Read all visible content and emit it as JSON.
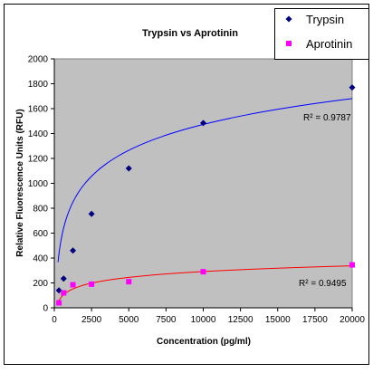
{
  "chart_data": {
    "type": "scatter",
    "title": "Trypsin vs Aprotinin",
    "xlabel": "Concentration (pg/ml)",
    "ylabel": "Relative Fluorescence Units (RFU)",
    "xlim": [
      0,
      20000
    ],
    "ylim": [
      0,
      2000
    ],
    "xticks": [
      0,
      2500,
      5000,
      7500,
      10000,
      12500,
      15000,
      17500,
      20000
    ],
    "yticks": [
      0,
      200,
      400,
      600,
      800,
      1000,
      1200,
      1400,
      1600,
      1800,
      2000
    ],
    "grid": false,
    "legend_position": "top-right",
    "plot_background": "#c0c0c0",
    "series": [
      {
        "name": "Trypsin",
        "color": "#000080",
        "marker": "diamond",
        "trendline_color": "#0000ff",
        "r_squared_label": "R² = 0.9787",
        "points": [
          {
            "x": 312,
            "y": 140
          },
          {
            "x": 625,
            "y": 235
          },
          {
            "x": 1250,
            "y": 460
          },
          {
            "x": 2500,
            "y": 755
          },
          {
            "x": 5000,
            "y": 1120
          },
          {
            "x": 10000,
            "y": 1485
          },
          {
            "x": 20000,
            "y": 1770
          }
        ],
        "trendline_log_fit": {
          "a": 300.0,
          "b": -1290.0
        }
      },
      {
        "name": "Aprotinin",
        "color": "#ff00ff",
        "marker": "square",
        "trendline_color": "#ff0000",
        "r_squared_label": "R² = 0.9495",
        "points": [
          {
            "x": 312,
            "y": 40
          },
          {
            "x": 625,
            "y": 120
          },
          {
            "x": 1250,
            "y": 185
          },
          {
            "x": 2500,
            "y": 190
          },
          {
            "x": 5000,
            "y": 210
          },
          {
            "x": 10000,
            "y": 290
          },
          {
            "x": 20000,
            "y": 345
          }
        ],
        "trendline_log_fit": {
          "a": 67.0,
          "b": -326.0
        }
      }
    ]
  }
}
